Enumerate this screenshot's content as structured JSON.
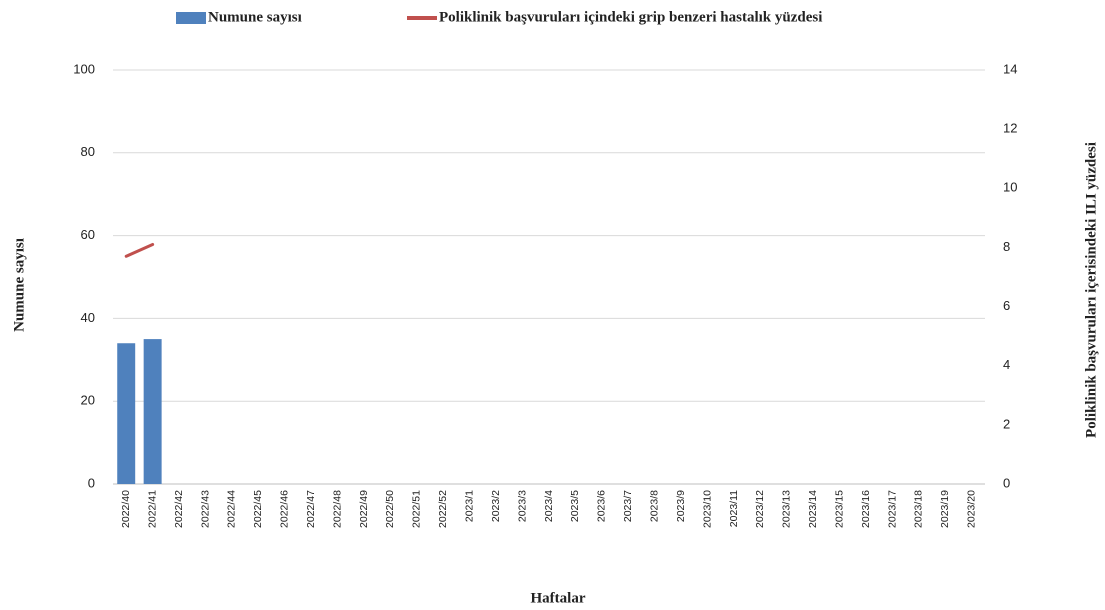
{
  "chart_data": {
    "type": "bar",
    "xlabel": "Haftalar",
    "ylabel": "Numune sayısı",
    "y2label": "Poliklinik başvuruları içerisindeki ILI yüzdesi",
    "categories": [
      "2022/40",
      "2022/41",
      "2022/42",
      "2022/43",
      "2022/44",
      "2022/45",
      "2022/46",
      "2022/47",
      "2022/48",
      "2022/49",
      "2022/50",
      "2022/51",
      "2022/52",
      "2023/1",
      "2023/2",
      "2023/3",
      "2023/4",
      "2023/5",
      "2023/6",
      "2023/7",
      "2023/8",
      "2023/9",
      "2023/10",
      "2023/11",
      "2023/12",
      "2023/13",
      "2023/14",
      "2023/15",
      "2023/16",
      "2023/17",
      "2023/18",
      "2023/19",
      "2023/20"
    ],
    "series": [
      {
        "name": "Numune sayısı",
        "type": "bar",
        "color": "#4f81bd",
        "values": [
          34,
          35,
          null,
          null,
          null,
          null,
          null,
          null,
          null,
          null,
          null,
          null,
          null,
          null,
          null,
          null,
          null,
          null,
          null,
          null,
          null,
          null,
          null,
          null,
          null,
          null,
          null,
          null,
          null,
          null,
          null,
          null,
          null
        ]
      },
      {
        "name": "Poliklinik başvuruları içindeki grip benzeri hastalık yüzdesi",
        "type": "line",
        "axis": "y2",
        "color": "#c0504d",
        "values": [
          7.7,
          8.1,
          null,
          null,
          null,
          null,
          null,
          null,
          null,
          null,
          null,
          null,
          null,
          null,
          null,
          null,
          null,
          null,
          null,
          null,
          null,
          null,
          null,
          null,
          null,
          null,
          null,
          null,
          null,
          null,
          null,
          null,
          null
        ]
      }
    ],
    "ylim": [
      0,
      100
    ],
    "yticks": [
      0,
      20,
      40,
      60,
      80,
      100
    ],
    "y2lim": [
      0,
      14
    ],
    "y2ticks": [
      0,
      2,
      4,
      6,
      8,
      10,
      12,
      14
    ],
    "grid": true,
    "legend": "top"
  }
}
